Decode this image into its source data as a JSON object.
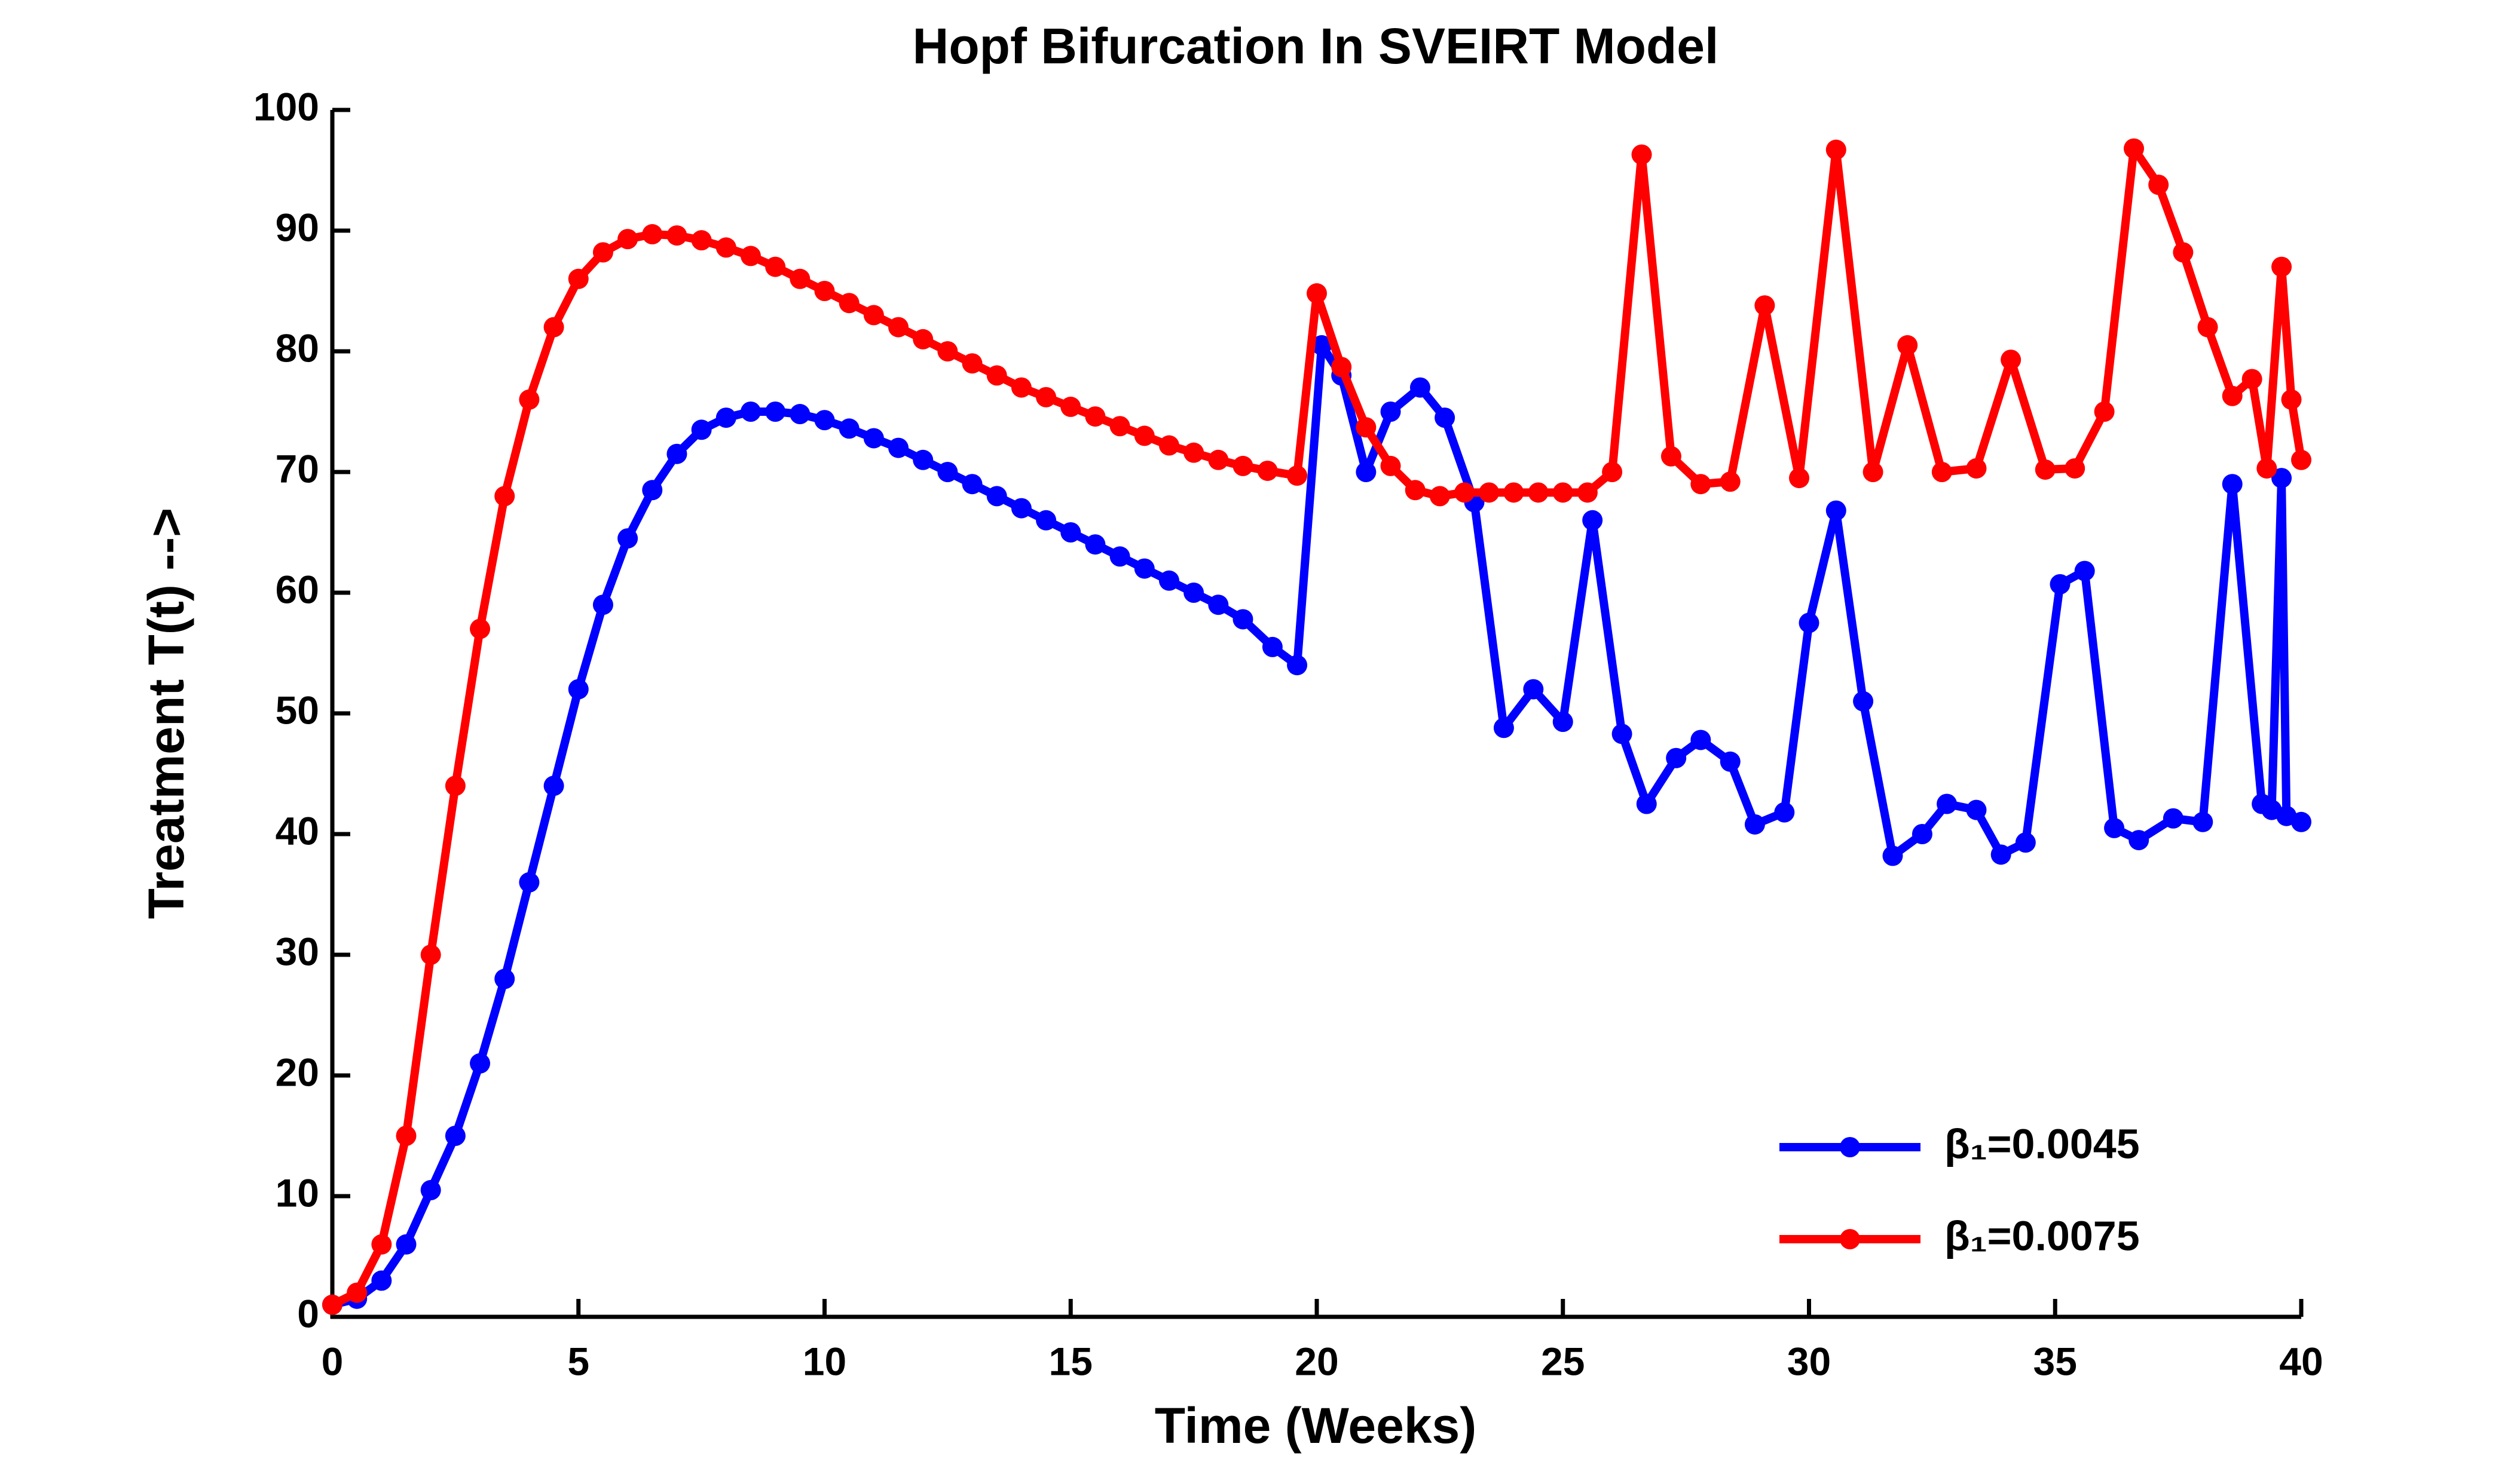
{
  "chart_data": {
    "type": "line",
    "title": "Hopf Bifurcation In SVEIRT Model",
    "xlabel": "Time (Weeks)",
    "ylabel": "Treatment T(t) -->",
    "xlim": [
      0,
      40
    ],
    "ylim": [
      0,
      100
    ],
    "xticks": [
      0,
      5,
      10,
      15,
      20,
      25,
      30,
      35,
      40
    ],
    "yticks": [
      0,
      10,
      20,
      30,
      40,
      50,
      60,
      70,
      80,
      90,
      100
    ],
    "legend": "lower right",
    "series": [
      {
        "name": "β₁=0.0045",
        "color": "#0000ff",
        "x": [
          0,
          0.5,
          1,
          1.5,
          2,
          2.5,
          3,
          3.5,
          4,
          4.5,
          5,
          5.5,
          6,
          6.5,
          7,
          7.5,
          8,
          8.5,
          9,
          9.5,
          10,
          10.5,
          11,
          11.5,
          12,
          12.5,
          13,
          13.5,
          14,
          14.5,
          15,
          15.5,
          16,
          16.5,
          17,
          17.5,
          18,
          18.5,
          19.1,
          19.6,
          20.1,
          20.5,
          21,
          21.5,
          22.1,
          22.6,
          23.2,
          23.8,
          24.4,
          25,
          25.6,
          26.2,
          26.7,
          27.3,
          27.8,
          28.4,
          28.9,
          29.5,
          30,
          30.55,
          31.1,
          31.7,
          32.3,
          32.8,
          33.4,
          33.9,
          34.4,
          35.1,
          35.6,
          36.2,
          36.7,
          37.4,
          38,
          38.6,
          39.2,
          39.4,
          39.6,
          39.7,
          40
        ],
        "values": [
          1,
          1.5,
          3,
          6,
          10.5,
          15,
          21,
          28,
          36,
          44,
          52,
          59,
          64.5,
          68.5,
          71.5,
          73.5,
          74.5,
          75,
          75,
          74.8,
          74.3,
          73.6,
          72.8,
          72,
          71,
          70,
          69,
          68,
          67,
          66,
          65,
          64,
          63,
          62,
          61,
          60,
          59,
          57.8,
          55.5,
          54,
          80.5,
          78,
          70,
          75,
          77,
          74.5,
          67.5,
          48.8,
          52,
          49.3,
          66,
          48.3,
          42.5,
          46.3,
          47.8,
          46,
          40.8,
          41.8,
          57.5,
          66.8,
          51,
          38.2,
          40,
          42.5,
          42,
          38.3,
          39.3,
          60.7,
          61.8,
          40.5,
          39.5,
          41.3,
          41,
          69,
          42.5,
          42,
          69.5,
          41.5,
          41
        ]
      },
      {
        "name": "β₁=0.0075",
        "color": "#ff0000",
        "x": [
          0,
          0.5,
          1,
          1.5,
          2,
          2.5,
          3,
          3.5,
          4,
          4.5,
          5,
          5.5,
          6,
          6.5,
          7,
          7.5,
          8,
          8.5,
          9,
          9.5,
          10,
          10.5,
          11,
          11.5,
          12,
          12.5,
          13,
          13.5,
          14,
          14.5,
          15,
          15.5,
          16,
          16.5,
          17,
          17.5,
          18,
          18.5,
          19,
          19.6,
          20,
          20.5,
          21,
          21.5,
          22,
          22.5,
          23,
          23.5,
          24,
          24.5,
          25,
          25.5,
          26,
          26.6,
          27.2,
          27.8,
          28.4,
          29.1,
          29.8,
          30.55,
          31.3,
          32,
          32.7,
          33.4,
          34.1,
          34.8,
          35.4,
          36,
          36.6,
          37.1,
          37.6,
          38.1,
          38.6,
          39,
          39.3,
          39.6,
          39.8,
          40
        ],
        "values": [
          1,
          2,
          6,
          15,
          30,
          44,
          57,
          68,
          76,
          82,
          86,
          88.2,
          89.3,
          89.7,
          89.6,
          89.2,
          88.6,
          87.9,
          87,
          86,
          85,
          84,
          83,
          82,
          81,
          80,
          79,
          78,
          77,
          76.2,
          75.4,
          74.6,
          73.8,
          73,
          72.2,
          71.6,
          71,
          70.5,
          70.1,
          69.7,
          84.8,
          78.7,
          73.7,
          70.5,
          68.5,
          68,
          68.3,
          68.3,
          68.3,
          68.3,
          68.3,
          68.3,
          70,
          96.3,
          71.3,
          69,
          69.2,
          83.8,
          69.5,
          96.7,
          70,
          80.5,
          70,
          70.3,
          79.3,
          70.2,
          70.3,
          75,
          96.8,
          93.8,
          88.2,
          82,
          76.3,
          77.7,
          70.3,
          87,
          76,
          71
        ]
      }
    ]
  }
}
